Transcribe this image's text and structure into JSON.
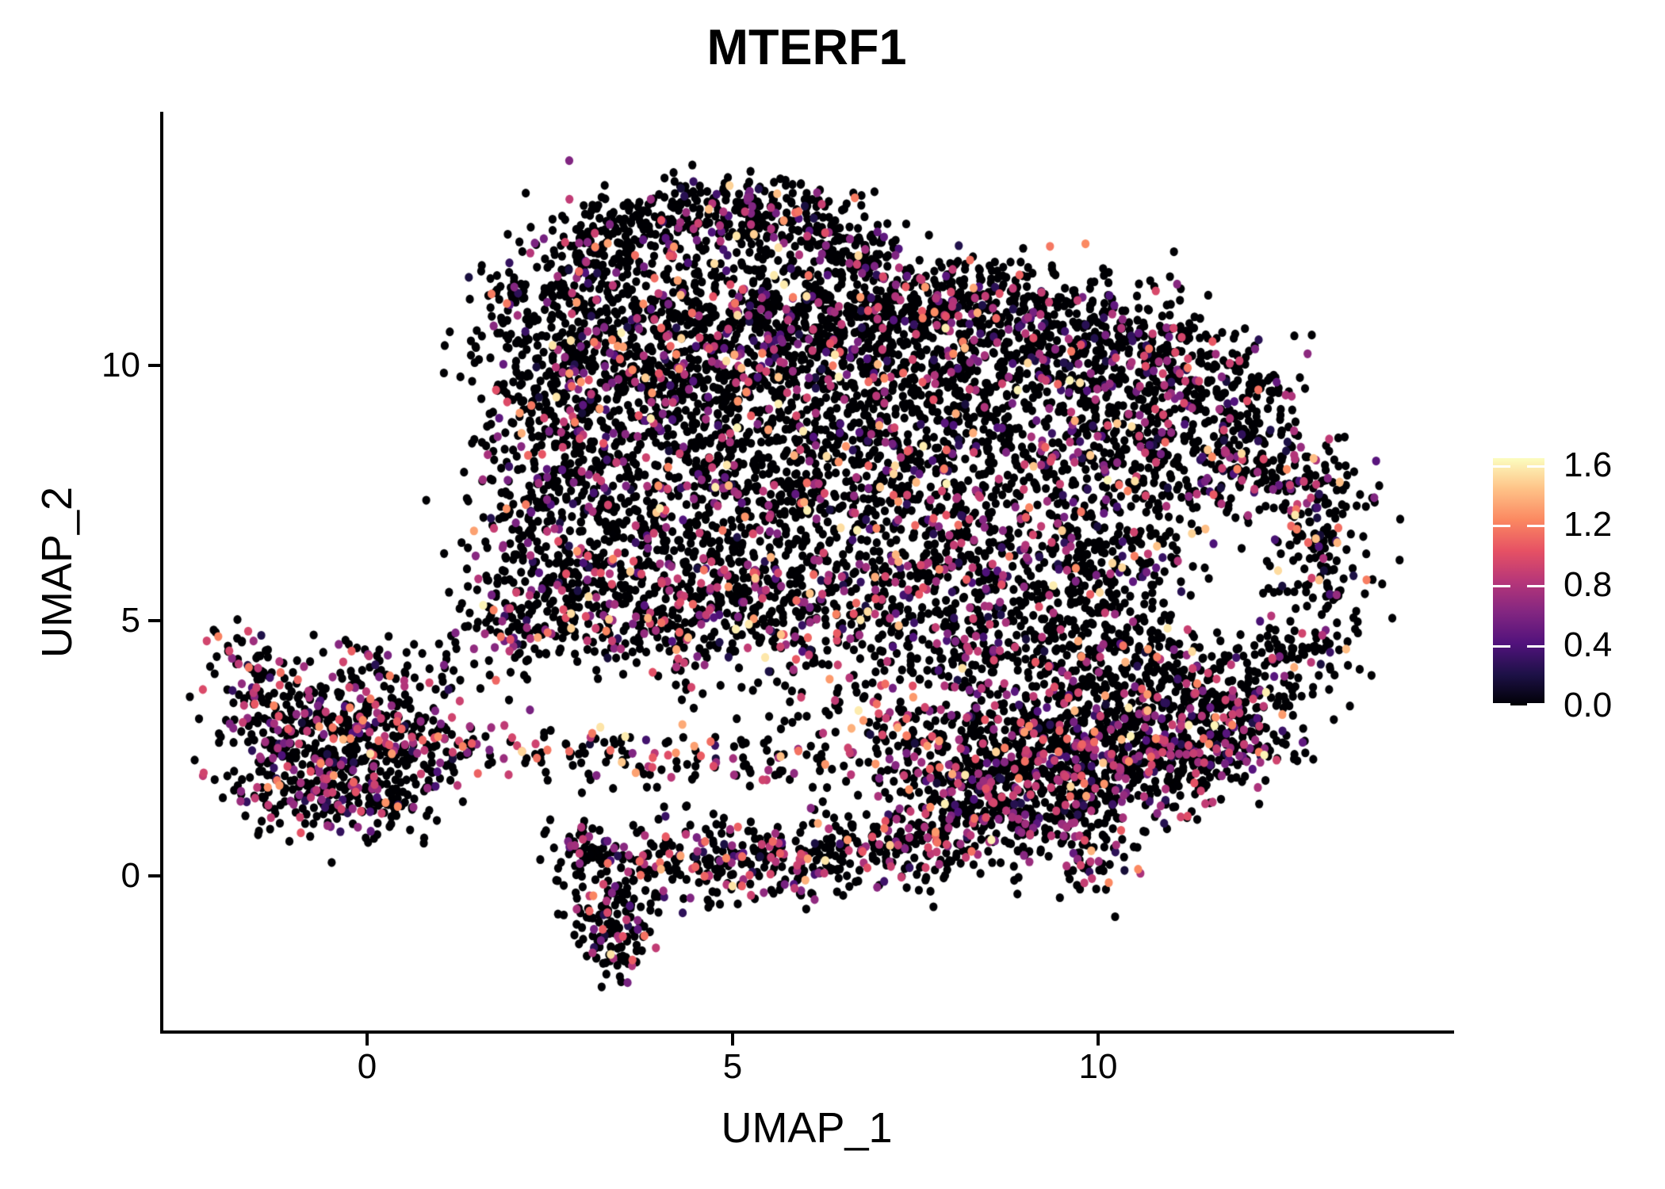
{
  "chart_data": {
    "type": "scatter",
    "title": "MTERF1",
    "xlabel": "UMAP_1",
    "ylabel": "UMAP_2",
    "x_ticks": [
      {
        "label": "0",
        "value": 0
      },
      {
        "label": "5",
        "value": 5
      },
      {
        "label": "10",
        "value": 10
      }
    ],
    "y_ticks": [
      {
        "label": "0",
        "value": 0
      },
      {
        "label": "5",
        "value": 5
      },
      {
        "label": "10",
        "value": 10
      }
    ],
    "xlim": [
      -2.8,
      14.8
    ],
    "ylim": [
      -3.1,
      14.9
    ],
    "grid": false,
    "background": "#ffffff",
    "axis_color": "#000000",
    "legend_position": "right",
    "point_style": {
      "rx": 5.1,
      "ry": 5.6
    },
    "colorbar": {
      "vmin": 0.0,
      "vmax": 1.645,
      "ticks": [
        {
          "label": "1.6",
          "value": 1.6
        },
        {
          "label": "1.2",
          "value": 1.2
        },
        {
          "label": "0.8",
          "value": 0.8
        },
        {
          "label": "0.4",
          "value": 0.4
        },
        {
          "label": "0.0",
          "value": 0.0
        }
      ],
      "colormap": "magma",
      "stops": [
        [
          0.0,
          "#000004"
        ],
        [
          0.125,
          "#1d1147"
        ],
        [
          0.25,
          "#51127c"
        ],
        [
          0.375,
          "#822681"
        ],
        [
          0.5,
          "#b63679"
        ],
        [
          0.625,
          "#e65164"
        ],
        [
          0.75,
          "#fb8861"
        ],
        [
          0.875,
          "#fec287"
        ],
        [
          1.0,
          "#fcfdbf"
        ]
      ]
    },
    "seed": 1337,
    "value_profiles": [
      {
        "probs": [
          0.8,
          0.055,
          0.1,
          0.03,
          0.015
        ],
        "bands": [
          [
            0,
            0
          ],
          [
            0.15,
            0.5
          ],
          [
            0.55,
            0.95
          ],
          [
            0.95,
            1.3
          ],
          [
            1.3,
            1.62
          ]
        ]
      },
      {
        "probs": [
          0.72,
          0.06,
          0.17,
          0.04,
          0.01
        ],
        "bands": [
          [
            0,
            0
          ],
          [
            0.15,
            0.5
          ],
          [
            0.55,
            0.95
          ],
          [
            0.95,
            1.3
          ],
          [
            1.3,
            1.62
          ]
        ]
      },
      {
        "probs": [
          0.69,
          0.05,
          0.14,
          0.1,
          0.02
        ],
        "bands": [
          [
            0,
            0
          ],
          [
            0.15,
            0.5
          ],
          [
            0.55,
            0.95
          ],
          [
            0.95,
            1.3
          ],
          [
            1.3,
            1.62
          ]
        ]
      }
    ],
    "clusters": [
      [
        2.05,
        11.05,
        0.35,
        0.45,
        45,
        0
      ],
      [
        2.5,
        11.6,
        0.4,
        0.45,
        60,
        0
      ],
      [
        3.0,
        12.15,
        0.45,
        0.45,
        75,
        0
      ],
      [
        3.6,
        12.6,
        0.5,
        0.4,
        85,
        0
      ],
      [
        4.3,
        12.9,
        0.5,
        0.35,
        85,
        0
      ],
      [
        5.0,
        13.0,
        0.5,
        0.35,
        85,
        0
      ],
      [
        5.7,
        12.9,
        0.5,
        0.35,
        80,
        0
      ],
      [
        6.3,
        12.6,
        0.4,
        0.4,
        70,
        0
      ],
      [
        6.75,
        12.2,
        0.3,
        0.4,
        45,
        0
      ],
      [
        4.0,
        11.9,
        0.7,
        0.6,
        35,
        0
      ],
      [
        4.9,
        12.0,
        0.7,
        0.55,
        38,
        0
      ],
      [
        5.8,
        12.0,
        0.6,
        0.55,
        34,
        0
      ],
      [
        3.4,
        11.3,
        0.6,
        0.6,
        30,
        0
      ],
      [
        6.4,
        11.6,
        0.5,
        0.5,
        26,
        0
      ],
      [
        2.6,
        10.1,
        0.55,
        0.5,
        72,
        0
      ],
      [
        3.3,
        10.5,
        0.6,
        0.55,
        92,
        0
      ],
      [
        4.1,
        10.8,
        0.6,
        0.5,
        99,
        0
      ],
      [
        4.9,
        10.9,
        0.6,
        0.5,
        99,
        0
      ],
      [
        5.7,
        10.9,
        0.6,
        0.5,
        99,
        0
      ],
      [
        6.5,
        11.0,
        0.6,
        0.5,
        99,
        0
      ],
      [
        7.3,
        11.2,
        0.6,
        0.5,
        102,
        0
      ],
      [
        8.1,
        11.3,
        0.6,
        0.5,
        102,
        0
      ],
      [
        8.9,
        11.2,
        0.6,
        0.5,
        99,
        0
      ],
      [
        9.7,
        10.9,
        0.6,
        0.55,
        99,
        0
      ],
      [
        10.5,
        10.5,
        0.55,
        0.55,
        92,
        0
      ],
      [
        11.2,
        10.1,
        0.5,
        0.55,
        85,
        0
      ],
      [
        11.9,
        9.6,
        0.5,
        0.55,
        79,
        0
      ],
      [
        2.3,
        9.2,
        0.5,
        0.55,
        66,
        0
      ],
      [
        3.0,
        9.5,
        0.6,
        0.55,
        85,
        0
      ],
      [
        3.8,
        9.7,
        0.6,
        0.55,
        89,
        0
      ],
      [
        4.6,
        9.8,
        0.6,
        0.55,
        89,
        0
      ],
      [
        5.4,
        9.9,
        0.6,
        0.55,
        89,
        0
      ],
      [
        6.2,
        10.0,
        0.6,
        0.55,
        89,
        0
      ],
      [
        7.0,
        10.2,
        0.6,
        0.55,
        92,
        0
      ],
      [
        7.8,
        10.3,
        0.6,
        0.55,
        92,
        0
      ],
      [
        8.6,
        10.2,
        0.6,
        0.55,
        89,
        0
      ],
      [
        9.4,
        9.9,
        0.6,
        0.55,
        85,
        0
      ],
      [
        10.2,
        9.5,
        0.55,
        0.55,
        79,
        0
      ],
      [
        10.9,
        9.1,
        0.5,
        0.55,
        72,
        0
      ],
      [
        11.6,
        8.7,
        0.5,
        0.6,
        72,
        0
      ],
      [
        12.3,
        8.3,
        0.5,
        0.6,
        72,
        0
      ],
      [
        2.1,
        7.9,
        0.45,
        0.55,
        53,
        0
      ],
      [
        2.8,
        8.2,
        0.55,
        0.6,
        79,
        0
      ],
      [
        3.6,
        8.4,
        0.6,
        0.6,
        85,
        0
      ],
      [
        4.4,
        8.5,
        0.6,
        0.6,
        85,
        0
      ],
      [
        5.2,
        8.6,
        0.6,
        0.6,
        85,
        0
      ],
      [
        6.0,
        8.7,
        0.6,
        0.6,
        85,
        0
      ],
      [
        6.8,
        8.8,
        0.6,
        0.6,
        89,
        0
      ],
      [
        7.6,
        8.9,
        0.6,
        0.6,
        89,
        0
      ],
      [
        8.4,
        8.8,
        0.6,
        0.6,
        85,
        0
      ],
      [
        9.2,
        8.6,
        0.6,
        0.6,
        83,
        0
      ],
      [
        10.0,
        8.3,
        0.55,
        0.6,
        76,
        0
      ],
      [
        10.7,
        7.9,
        0.5,
        0.6,
        70,
        0
      ],
      [
        11.6,
        7.9,
        0.5,
        0.5,
        60,
        0
      ],
      [
        12.6,
        7.7,
        0.45,
        0.6,
        60,
        0
      ],
      [
        13.0,
        7.1,
        0.4,
        0.7,
        60,
        0
      ],
      [
        2.1,
        6.7,
        0.45,
        0.6,
        53,
        0
      ],
      [
        2.8,
        6.9,
        0.55,
        0.6,
        76,
        0
      ],
      [
        3.6,
        7.1,
        0.6,
        0.6,
        83,
        0
      ],
      [
        4.4,
        7.2,
        0.6,
        0.6,
        83,
        0
      ],
      [
        5.2,
        7.3,
        0.6,
        0.6,
        83,
        0
      ],
      [
        6.0,
        7.4,
        0.6,
        0.6,
        83,
        0
      ],
      [
        6.8,
        7.4,
        0.6,
        0.6,
        83,
        0
      ],
      [
        7.6,
        7.4,
        0.6,
        0.6,
        83,
        0
      ],
      [
        8.4,
        7.3,
        0.6,
        0.6,
        79,
        0
      ],
      [
        9.2,
        7.1,
        0.6,
        0.6,
        76,
        0
      ],
      [
        10.0,
        6.8,
        0.55,
        0.6,
        70,
        0
      ],
      [
        10.6,
        6.4,
        0.5,
        0.6,
        62,
        0
      ],
      [
        13.0,
        6.3,
        0.35,
        0.6,
        46,
        0
      ],
      [
        2.0,
        5.5,
        0.4,
        0.5,
        40,
        0
      ],
      [
        2.7,
        5.7,
        0.5,
        0.55,
        66,
        0
      ],
      [
        3.5,
        5.8,
        0.6,
        0.55,
        72,
        0
      ],
      [
        4.3,
        5.9,
        0.6,
        0.55,
        72,
        0
      ],
      [
        5.1,
        6.0,
        0.6,
        0.55,
        72,
        0
      ],
      [
        5.9,
        6.0,
        0.6,
        0.55,
        72,
        0
      ],
      [
        6.7,
        6.0,
        0.6,
        0.55,
        72,
        0
      ],
      [
        7.5,
        6.0,
        0.6,
        0.55,
        72,
        0
      ],
      [
        8.3,
        5.9,
        0.6,
        0.55,
        71,
        0
      ],
      [
        9.1,
        5.7,
        0.6,
        0.55,
        70,
        0
      ],
      [
        9.9,
        5.4,
        0.55,
        0.55,
        62,
        0
      ],
      [
        10.5,
        5.0,
        0.5,
        0.55,
        56,
        0
      ],
      [
        12.9,
        5.4,
        0.4,
        0.6,
        53,
        0
      ],
      [
        2.2,
        4.9,
        0.4,
        0.45,
        36,
        0
      ],
      [
        2.9,
        5.0,
        0.5,
        0.45,
        49,
        0
      ],
      [
        3.7,
        5.1,
        0.55,
        0.45,
        53,
        0
      ],
      [
        4.5,
        5.2,
        0.55,
        0.45,
        53,
        0
      ],
      [
        5.3,
        5.2,
        0.55,
        0.45,
        53,
        0
      ],
      [
        6.1,
        5.1,
        0.55,
        0.45,
        53,
        0
      ],
      [
        6.9,
        5.0,
        0.55,
        0.5,
        56,
        0
      ],
      [
        7.7,
        4.7,
        0.55,
        0.55,
        60,
        0
      ],
      [
        8.4,
        4.4,
        0.55,
        0.55,
        62,
        0
      ],
      [
        9.1,
        4.4,
        0.55,
        0.5,
        60,
        0
      ],
      [
        9.8,
        4.5,
        0.5,
        0.5,
        56,
        0
      ],
      [
        10.4,
        4.2,
        0.5,
        0.45,
        53,
        0
      ],
      [
        11.0,
        3.8,
        0.5,
        0.4,
        47,
        0
      ],
      [
        11.8,
        3.7,
        0.5,
        0.4,
        47,
        0
      ],
      [
        12.4,
        4.0,
        0.45,
        0.45,
        53,
        0
      ],
      [
        12.8,
        4.4,
        0.4,
        0.5,
        53,
        0
      ],
      [
        8.3,
        1.8,
        0.6,
        0.55,
        112,
        1
      ],
      [
        9.1,
        1.9,
        0.65,
        0.6,
        128,
        1
      ],
      [
        9.9,
        1.9,
        0.6,
        0.55,
        120,
        1
      ],
      [
        10.6,
        2.0,
        0.55,
        0.5,
        105,
        1
      ],
      [
        11.2,
        2.3,
        0.5,
        0.5,
        97,
        1
      ],
      [
        8.6,
        2.8,
        0.7,
        0.6,
        135,
        1
      ],
      [
        9.5,
        2.9,
        0.7,
        0.6,
        142,
        1
      ],
      [
        10.4,
        3.0,
        0.65,
        0.55,
        128,
        1
      ],
      [
        11.2,
        3.1,
        0.55,
        0.5,
        105,
        1
      ],
      [
        11.8,
        2.9,
        0.45,
        0.45,
        75,
        1
      ],
      [
        12.2,
        2.6,
        0.35,
        0.4,
        45,
        1
      ],
      [
        8.0,
        1.2,
        0.45,
        0.45,
        66,
        1
      ],
      [
        8.8,
        1.0,
        0.5,
        0.45,
        75,
        1
      ],
      [
        9.5,
        0.9,
        0.45,
        0.5,
        70,
        1
      ],
      [
        9.9,
        0.4,
        0.35,
        0.4,
        45,
        1
      ],
      [
        2.8,
        0.55,
        0.3,
        0.3,
        30,
        1
      ],
      [
        3.3,
        0.4,
        0.4,
        0.35,
        52,
        1
      ],
      [
        3.5,
        -0.4,
        0.4,
        0.45,
        68,
        1
      ],
      [
        3.3,
        -1.0,
        0.3,
        0.4,
        52,
        1
      ],
      [
        3.45,
        -1.55,
        0.25,
        0.35,
        34,
        1
      ],
      [
        4.1,
        0.3,
        0.45,
        0.4,
        60,
        2
      ],
      [
        4.7,
        0.45,
        0.4,
        0.35,
        52,
        1
      ],
      [
        5.3,
        0.4,
        0.45,
        0.4,
        60,
        2
      ],
      [
        5.9,
        0.3,
        0.45,
        0.4,
        64,
        1
      ],
      [
        6.5,
        0.4,
        0.45,
        0.4,
        64,
        2
      ],
      [
        7.1,
        0.6,
        0.4,
        0.4,
        60,
        1
      ],
      [
        7.7,
        0.6,
        0.45,
        0.45,
        64,
        2
      ],
      [
        1.0,
        2.5,
        0.5,
        0.3,
        18,
        2
      ],
      [
        2.0,
        2.4,
        0.7,
        0.3,
        26,
        2
      ],
      [
        3.0,
        2.4,
        0.8,
        0.3,
        30,
        2
      ],
      [
        4.0,
        2.35,
        0.8,
        0.3,
        30,
        2
      ],
      [
        5.0,
        2.3,
        0.8,
        0.3,
        30,
        2
      ],
      [
        6.0,
        2.3,
        0.8,
        0.3,
        30,
        2
      ],
      [
        7.0,
        2.4,
        0.8,
        0.35,
        34,
        2
      ],
      [
        8.0,
        2.5,
        0.8,
        0.35,
        38,
        2
      ],
      [
        1.4,
        4.1,
        0.5,
        0.5,
        22,
        2
      ],
      [
        2.0,
        4.7,
        0.4,
        0.4,
        18,
        2
      ],
      [
        6.9,
        3.4,
        0.6,
        0.5,
        38,
        2
      ],
      [
        6.0,
        3.9,
        0.7,
        0.5,
        34,
        2
      ],
      [
        5.0,
        4.3,
        0.6,
        0.5,
        30,
        2
      ],
      [
        4.2,
        4.6,
        0.5,
        0.4,
        26,
        2
      ],
      [
        7.5,
        2.9,
        0.5,
        0.4,
        34,
        2
      ],
      [
        3.6,
        4.9,
        0.4,
        0.35,
        26,
        2
      ],
      [
        -1.1,
        3.1,
        0.5,
        0.45,
        68,
        1
      ],
      [
        -0.4,
        3.3,
        0.55,
        0.45,
        80,
        1
      ],
      [
        0.3,
        3.1,
        0.5,
        0.45,
        75,
        1
      ],
      [
        -1.3,
        2.4,
        0.45,
        0.5,
        68,
        1
      ],
      [
        -0.6,
        2.5,
        0.55,
        0.5,
        80,
        1
      ],
      [
        0.2,
        2.4,
        0.5,
        0.5,
        75,
        1
      ],
      [
        -1.0,
        1.7,
        0.45,
        0.4,
        56,
        1
      ],
      [
        -0.2,
        1.7,
        0.5,
        0.4,
        62,
        1
      ],
      [
        0.5,
        1.8,
        0.4,
        0.4,
        45,
        1
      ],
      [
        -0.6,
        1.3,
        0.4,
        0.3,
        34,
        1
      ],
      [
        0.1,
        1.3,
        0.35,
        0.3,
        28,
        1
      ],
      [
        -1.85,
        4.45,
        0.22,
        0.3,
        20,
        1
      ],
      [
        -1.6,
        4.05,
        0.25,
        0.3,
        20,
        1
      ],
      [
        -1.4,
        3.7,
        0.3,
        0.3,
        22,
        1
      ],
      [
        -0.1,
        4.2,
        0.5,
        0.35,
        20,
        1
      ],
      [
        0.6,
        3.9,
        0.35,
        0.3,
        14,
        1
      ],
      [
        1.0,
        2.6,
        0.3,
        0.4,
        20,
        1
      ]
    ]
  }
}
